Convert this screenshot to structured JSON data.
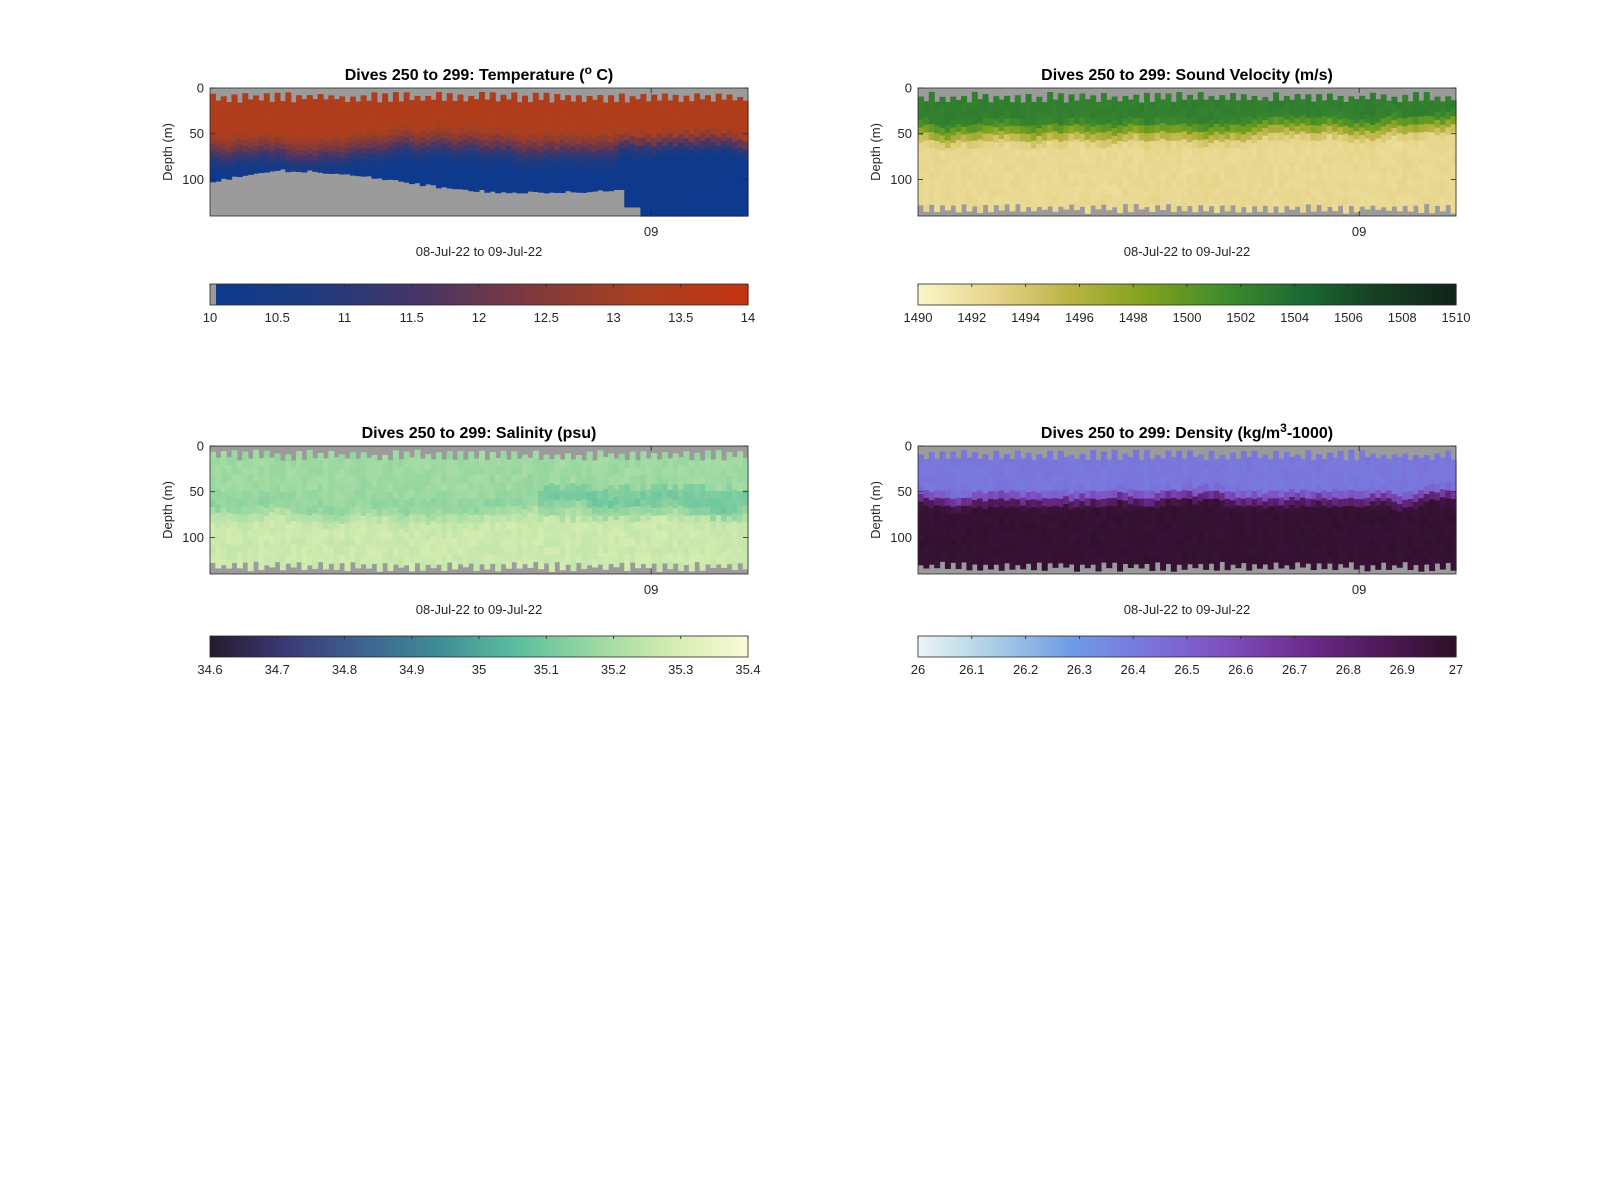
{
  "chart_data": [
    {
      "type": "heatmap",
      "title": "Dives 250 to 299: Temperature (° C)",
      "title_parts": [
        "Dives 250 to 299: Temperature (",
        "o",
        " C)"
      ],
      "title_sup_index": 1,
      "xlabel": "08-Jul-22 to 09-Jul-22",
      "ylabel": "Depth (m)",
      "x_ticks": [
        "09"
      ],
      "x_tick_positions": [
        0.82
      ],
      "y_ticks": [
        0,
        50,
        100
      ],
      "ylim": [
        0,
        140
      ],
      "dives": [
        250,
        299
      ],
      "colorbar": {
        "ticks": [
          "10",
          "10.5",
          "11",
          "11.5",
          "12",
          "12.5",
          "13",
          "13.5",
          "14"
        ],
        "range": [
          10,
          14
        ],
        "colors": [
          "#0c3a8f",
          "#1f3a7e",
          "#4a3564",
          "#803a3c",
          "#a9401f",
          "#c33311"
        ]
      },
      "field": {
        "surface_value": 13.4,
        "deep_value": 10.1,
        "thermocline_start_depth": 40,
        "thermocline_end_depth": 95
      }
    },
    {
      "type": "heatmap",
      "title": "Dives 250 to 299: Sound Velocity (m/s)",
      "title_parts": [
        "Dives 250 to 299: Sound Velocity (m/s)"
      ],
      "xlabel": "08-Jul-22 to 09-Jul-22",
      "ylabel": "Depth (m)",
      "x_ticks": [
        "09"
      ],
      "x_tick_positions": [
        0.82
      ],
      "y_ticks": [
        0,
        50,
        100
      ],
      "ylim": [
        0,
        140
      ],
      "dives": [
        250,
        299
      ],
      "colorbar": {
        "ticks": [
          "1490",
          "1492",
          "1494",
          "1496",
          "1498",
          "1500",
          "1502",
          "1504",
          "1506",
          "1508",
          "1510"
        ],
        "range": [
          1490,
          1510
        ],
        "colors": [
          "#fbf6c8",
          "#e6d48a",
          "#b9b342",
          "#7ea11d",
          "#3f8c2c",
          "#1c6a33",
          "#153f22",
          "#11231a"
        ]
      },
      "field": {
        "surface_value": 1502.5,
        "deep_value": 1492.5,
        "thermocline_start_depth": 30,
        "thermocline_end_depth": 65
      }
    },
    {
      "type": "heatmap",
      "title": "Dives 250 to 299: Salinity (psu)",
      "title_parts": [
        "Dives 250 to 299: Salinity (psu)"
      ],
      "xlabel": "08-Jul-22 to 09-Jul-22",
      "ylabel": "Depth (m)",
      "x_ticks": [
        "09"
      ],
      "x_tick_positions": [
        0.82
      ],
      "y_ticks": [
        0,
        50,
        100
      ],
      "ylim": [
        0,
        140
      ],
      "dives": [
        250,
        299
      ],
      "colorbar": {
        "ticks": [
          "34.6",
          "34.7",
          "34.8",
          "34.9",
          "35",
          "35.1",
          "35.2",
          "35.3",
          "35.4"
        ],
        "range": [
          34.6,
          35.4
        ],
        "colors": [
          "#251b2e",
          "#3b3a78",
          "#3c6490",
          "#3f8e96",
          "#5cbf9e",
          "#9ad8a0",
          "#d4ecb0",
          "#fbfad8"
        ]
      },
      "field": {
        "surface_value": 35.18,
        "mid_value": 35.15,
        "deep_value": 35.27,
        "thermocline_start_depth": 40,
        "thermocline_end_depth": 90
      }
    },
    {
      "type": "heatmap",
      "title": "Dives 250 to 299: Density (kg/m³-1000)",
      "title_parts": [
        "Dives 250 to 299: Density (kg/m",
        "3",
        "-1000)"
      ],
      "title_sup_index": 1,
      "xlabel": "08-Jul-22 to 09-Jul-22",
      "ylabel": "Depth (m)",
      "x_ticks": [
        "09"
      ],
      "x_tick_positions": [
        0.82
      ],
      "y_ticks": [
        0,
        50,
        100
      ],
      "ylim": [
        0,
        140
      ],
      "dives": [
        250,
        299
      ],
      "colorbar": {
        "ticks": [
          "26",
          "26.1",
          "26.2",
          "26.3",
          "26.4",
          "26.5",
          "26.6",
          "26.7",
          "26.8",
          "26.9",
          "27"
        ],
        "range": [
          26,
          27
        ],
        "colors": [
          "#eaf5f5",
          "#a9cde4",
          "#6f9be6",
          "#7a74dc",
          "#7e4fbf",
          "#6e2c8f",
          "#4f1a5a",
          "#2e0f28"
        ]
      },
      "field": {
        "surface_value": 26.42,
        "deep_value": 26.97,
        "thermocline_start_depth": 45,
        "thermocline_end_depth": 70
      }
    }
  ],
  "colors": {
    "no_data": "#9b9b9b",
    "axis": "#262626"
  }
}
